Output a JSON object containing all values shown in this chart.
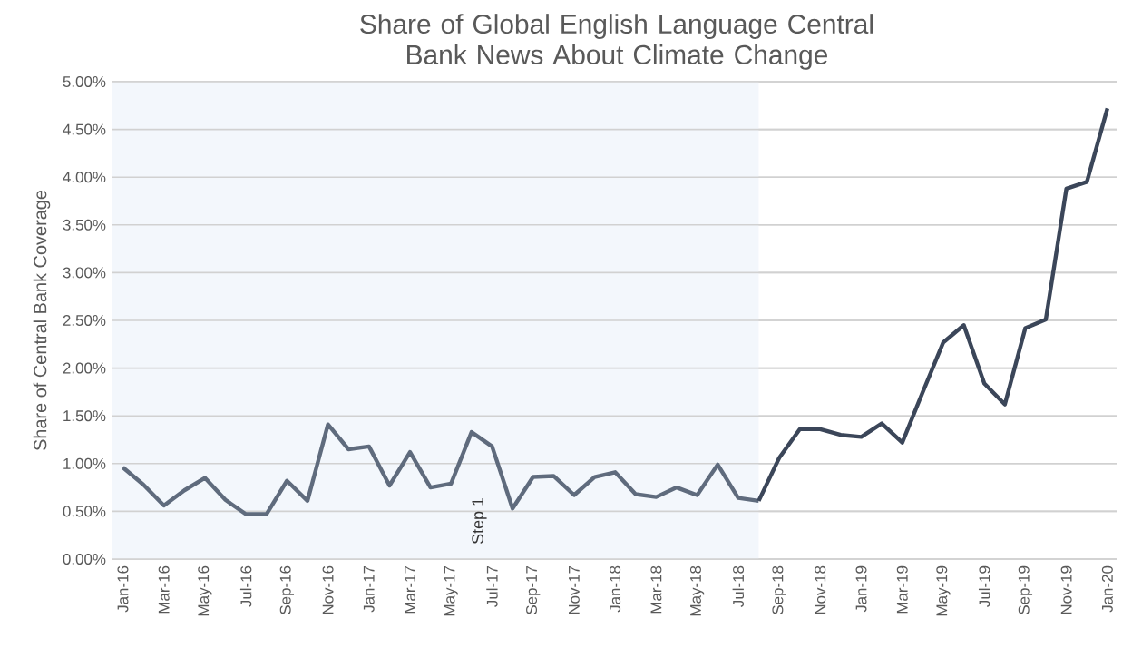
{
  "chart_data": {
    "type": "line",
    "title": "Share of Global English Language Central Bank News About Climate Change",
    "ylabel": "Share of Central Bank Coverage",
    "series": [
      {
        "color": "#5f6b7d",
        "x": [
          "2016-01",
          "2016-02",
          "2016-03",
          "2016-04",
          "2016-05",
          "2016-06",
          "2016-07",
          "2016-08",
          "2016-09",
          "2016-10",
          "2016-11",
          "2016-12",
          "2017-01",
          "2017-02",
          "2017-03",
          "2017-04",
          "2017-05",
          "2017-06",
          "2017-07",
          "2017-08",
          "2017-09",
          "2017-10",
          "2017-11",
          "2017-12",
          "2018-01",
          "2018-02",
          "2018-03",
          "2018-04",
          "2018-05",
          "2018-06",
          "2018-07",
          "2018-08"
        ],
        "values": [
          0.96,
          0.78,
          0.56,
          0.72,
          0.85,
          0.62,
          0.47,
          0.47,
          0.82,
          0.61,
          1.41,
          1.15,
          1.18,
          0.77,
          1.12,
          0.75,
          0.79,
          1.33,
          1.18,
          0.53,
          0.86,
          0.87,
          0.67,
          0.86,
          0.91,
          0.68,
          0.65,
          0.75,
          0.67,
          0.99,
          0.64,
          0.61
        ]
      },
      {
        "color": "#3b4659",
        "x": [
          "2018-08",
          "2018-09",
          "2018-10",
          "2018-11",
          "2018-12",
          "2019-01",
          "2019-02",
          "2019-03",
          "2019-04",
          "2019-05",
          "2019-06",
          "2019-07",
          "2019-08",
          "2019-09",
          "2019-10",
          "2019-11",
          "2019-12",
          "2020-01"
        ],
        "values": [
          0.61,
          1.06,
          1.36,
          1.36,
          1.3,
          1.28,
          1.42,
          1.22,
          1.75,
          2.27,
          2.45,
          1.84,
          1.62,
          2.42,
          2.51,
          3.88,
          3.95,
          4.72
        ]
      }
    ],
    "xlim": [
      "2015-12-16",
      "2020-01-16"
    ],
    "xticks": [
      {
        "value": "2016-01",
        "label": "Jan-16"
      },
      {
        "value": "2016-03",
        "label": "Mar-16"
      },
      {
        "value": "2016-05",
        "label": "May-16"
      },
      {
        "value": "2016-07",
        "label": "Jul-16"
      },
      {
        "value": "2016-09",
        "label": "Sep-16"
      },
      {
        "value": "2016-11",
        "label": "Nov-16"
      },
      {
        "value": "2017-01",
        "label": "Jan-17"
      },
      {
        "value": "2017-03",
        "label": "Mar-17"
      },
      {
        "value": "2017-05",
        "label": "May-17"
      },
      {
        "value": "2017-07",
        "label": "Jul-17"
      },
      {
        "value": "2017-09",
        "label": "Sep-17"
      },
      {
        "value": "2017-11",
        "label": "Nov-17"
      },
      {
        "value": "2018-01",
        "label": "Jan-18"
      },
      {
        "value": "2018-03",
        "label": "Mar-18"
      },
      {
        "value": "2018-05",
        "label": "May-18"
      },
      {
        "value": "2018-07",
        "label": "Jul-18"
      },
      {
        "value": "2018-09",
        "label": "Sep-18"
      },
      {
        "value": "2018-11",
        "label": "Nov-18"
      },
      {
        "value": "2019-01",
        "label": "Jan-19"
      },
      {
        "value": "2019-03",
        "label": "Mar-19"
      },
      {
        "value": "2019-05",
        "label": "May-19"
      },
      {
        "value": "2019-07",
        "label": "Jul-19"
      },
      {
        "value": "2019-09",
        "label": "Sep-19"
      },
      {
        "value": "2019-11",
        "label": "Nov-19"
      },
      {
        "value": "2020-01",
        "label": "Jan-20"
      }
    ],
    "ylim": [
      0,
      5
    ],
    "yticks": [
      {
        "value": 0,
        "label": "0.00%"
      },
      {
        "value": 0.5,
        "label": "0.50%"
      },
      {
        "value": 1,
        "label": "1.00%"
      },
      {
        "value": 1.5,
        "label": "1.50%"
      },
      {
        "value": 2,
        "label": "2.00%"
      },
      {
        "value": 2.5,
        "label": "2.50%"
      },
      {
        "value": 3,
        "label": "3.00%"
      },
      {
        "value": 3.5,
        "label": "3.50%"
      },
      {
        "value": 4,
        "label": "4.00%"
      },
      {
        "value": 4.5,
        "label": "4.50%"
      },
      {
        "value": 5,
        "label": "5.00%"
      }
    ],
    "grid": "y",
    "marker": "none",
    "line_style": "solid",
    "bands": [
      {
        "axis": "x",
        "from": "2015-12-16",
        "to": "2018-08",
        "color": "#f3f7fc"
      }
    ],
    "annotations": [
      "Step 1"
    ]
  }
}
